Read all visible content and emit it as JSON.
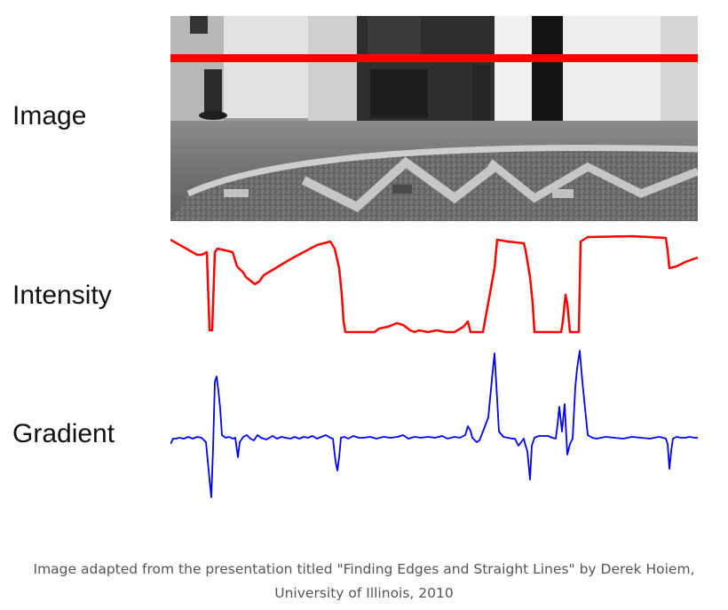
{
  "labels": {
    "image": "Image",
    "intensity": "Intensity",
    "gradient": "Gradient"
  },
  "caption": {
    "line1": "Image adapted from the presentation titled \"Finding Edges and Straight Lines\" by Derek Hoiem,",
    "line2": "University of Illinois, 2010"
  },
  "colors": {
    "scanline": "#ff0000",
    "intensity": "#ff0000",
    "gradient": "#0000ff",
    "caption": "#555555"
  }
}
